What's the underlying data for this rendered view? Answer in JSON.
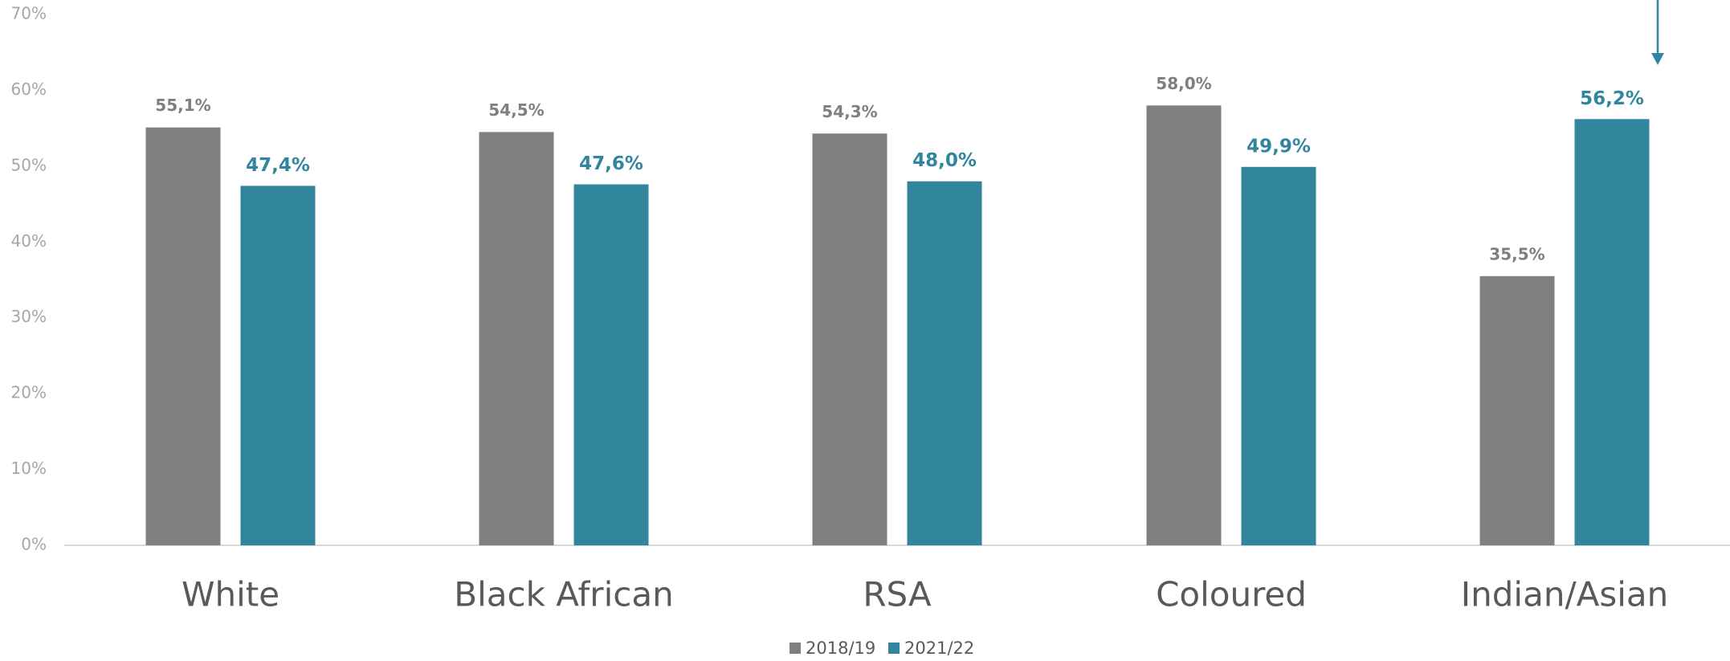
{
  "chart_data": {
    "type": "bar",
    "categories": [
      "White",
      "Black African",
      "RSA",
      "Coloured",
      "Indian/Asian"
    ],
    "series": [
      {
        "name": "2018/19",
        "color": "#808080",
        "values": [
          55.1,
          54.5,
          54.3,
          58.0,
          35.5
        ],
        "value_labels": [
          "55,1%",
          "54,5%",
          "54,3%",
          "58,0%",
          "35,5%"
        ]
      },
      {
        "name": "2021/22",
        "color": "#31859c",
        "values": [
          47.4,
          47.6,
          48.0,
          49.9,
          56.2
        ],
        "value_labels": [
          "47,4%",
          "47,6%",
          "48,0%",
          "49,9%",
          "56,2%"
        ]
      }
    ],
    "ylim": [
      0,
      70
    ],
    "yticks": [
      {
        "value": 0,
        "label": "0%"
      },
      {
        "value": 10,
        "label": "10%"
      },
      {
        "value": 20,
        "label": "20%"
      },
      {
        "value": 30,
        "label": "30%"
      },
      {
        "value": 40,
        "label": "40%"
      },
      {
        "value": 50,
        "label": "50%"
      },
      {
        "value": 60,
        "label": "60%"
      },
      {
        "value": 70,
        "label": "70%"
      }
    ],
    "legend": "bottom"
  }
}
